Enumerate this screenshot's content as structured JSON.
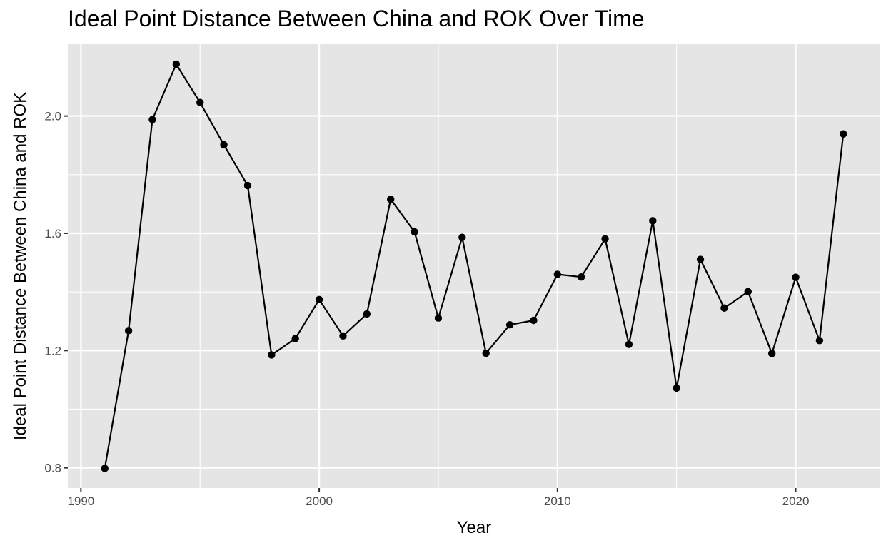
{
  "chart_data": {
    "type": "line",
    "title": "Ideal Point Distance Between China and ROK Over Time",
    "xlabel": "Year",
    "ylabel": "Ideal Point Distance Between China and ROK",
    "xlim": [
      1989.45,
      2023.55
    ],
    "ylim": [
      0.731,
      2.245
    ],
    "x_ticks": [
      1990,
      2000,
      2010,
      2020
    ],
    "y_ticks": [
      0.8,
      1.2,
      1.6,
      2.0
    ],
    "y_tick_labels": [
      "0.8",
      "1.2",
      "1.6",
      "2.0"
    ],
    "grid": true,
    "legend": "none",
    "colors": {
      "panel": "#e5e5e5",
      "grid": "#ffffff",
      "line": "#000000",
      "point": "#000000"
    },
    "series": [
      {
        "x": [
          1991,
          1992,
          1993,
          1994,
          1995,
          1996,
          1997,
          1998,
          1999,
          2000,
          2001,
          2002,
          2003,
          2004,
          2005,
          2006,
          2007,
          2008,
          2009,
          2010,
          2011,
          2012,
          2013,
          2014,
          2015,
          2016,
          2017,
          2018,
          2019,
          2020,
          2021,
          2022
        ],
        "y": [
          0.798,
          1.268,
          1.988,
          2.177,
          2.046,
          1.902,
          1.763,
          1.185,
          1.241,
          1.374,
          1.25,
          1.325,
          1.716,
          1.605,
          1.311,
          1.586,
          1.191,
          1.288,
          1.303,
          1.46,
          1.451,
          1.581,
          1.221,
          1.643,
          1.072,
          1.511,
          1.345,
          1.401,
          1.19,
          1.45,
          1.234,
          1.939
        ]
      }
    ]
  }
}
